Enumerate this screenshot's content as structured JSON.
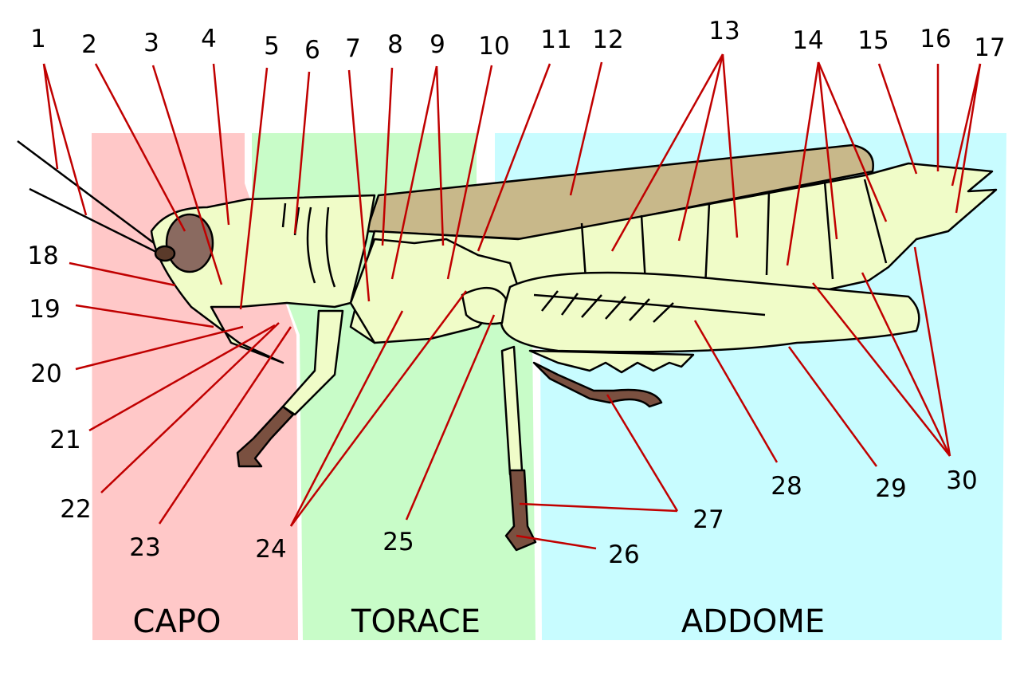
{
  "regions": [
    "CAPO",
    "TORACE",
    "ADDOME"
  ],
  "labels": [
    "1",
    "2",
    "3",
    "4",
    "5",
    "6",
    "7",
    "8",
    "9",
    "10",
    "11",
    "12",
    "13",
    "14",
    "15",
    "16",
    "17",
    "18",
    "19",
    "20",
    "21",
    "22",
    "23",
    "24",
    "25",
    "26",
    "27",
    "28",
    "29",
    "30"
  ]
}
